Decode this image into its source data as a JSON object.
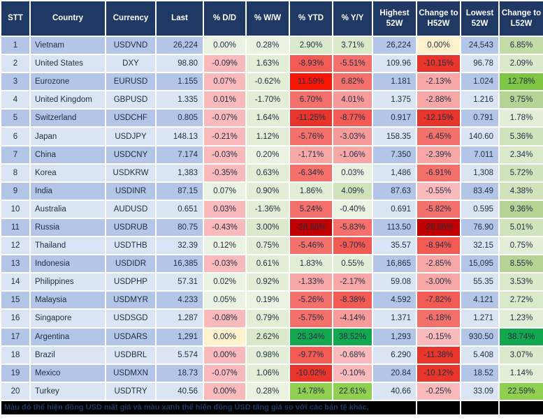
{
  "chart_data": {
    "type": "table",
    "columns": [
      {
        "key": "stt",
        "label": "STT"
      },
      {
        "key": "country",
        "label": "Country"
      },
      {
        "key": "currency",
        "label": "Currency"
      },
      {
        "key": "last",
        "label": "Last"
      },
      {
        "key": "dd",
        "label": "% D/D"
      },
      {
        "key": "ww",
        "label": "% W/W"
      },
      {
        "key": "ytd",
        "label": "% YTD"
      },
      {
        "key": "yy",
        "label": "% Y/Y"
      },
      {
        "key": "h52",
        "label": "Highest 52W"
      },
      {
        "key": "chg_h",
        "label": "Change to H52W"
      },
      {
        "key": "l52",
        "label": "Lowest 52W"
      },
      {
        "key": "chg_l",
        "label": "Change to L52W"
      }
    ],
    "rows": [
      {
        "stt": "1",
        "country": "Vietnam",
        "currency": "USDVND",
        "last": "26,224",
        "dd": [
          "0.00%",
          "g0"
        ],
        "ww": [
          "0.28%",
          "g0"
        ],
        "ytd": [
          "2.90%",
          "g2"
        ],
        "yy": [
          "3.71%",
          "g2"
        ],
        "h52": "26,224",
        "chg_h": [
          "0.00%",
          "cream"
        ],
        "l52": "24,543",
        "chg_l": [
          "6.85%",
          "g4"
        ]
      },
      {
        "stt": "2",
        "country": "United States",
        "currency": "DXY",
        "last": "98.80",
        "dd": [
          "-0.09%",
          "r1"
        ],
        "ww": [
          "1.63%",
          "g1"
        ],
        "ytd": [
          "-8.93%",
          "r5"
        ],
        "yy": [
          "-5.51%",
          "r4"
        ],
        "h52": "109.96",
        "chg_h": [
          "-10.15%",
          "r6"
        ],
        "l52": "96.78",
        "chg_l": [
          "2.09%",
          "g2"
        ]
      },
      {
        "stt": "3",
        "country": "Eurozone",
        "currency": "EURUSD",
        "last": "1.155",
        "dd": [
          "0.07%",
          "r1"
        ],
        "ww": [
          "-0.62%",
          "g1"
        ],
        "ytd": [
          "11.59%",
          "rx"
        ],
        "yy": [
          "6.82%",
          "r4"
        ],
        "h52": "1.181",
        "chg_h": [
          "-2.13%",
          "r2"
        ],
        "l52": "1.024",
        "chg_l": [
          "12.78%",
          "gx"
        ]
      },
      {
        "stt": "4",
        "country": "United Kingdom",
        "currency": "GBPUSD",
        "last": "1.335",
        "dd": [
          "0.01%",
          "r1"
        ],
        "ww": [
          "-1.70%",
          "g1"
        ],
        "ytd": [
          "6.70%",
          "r4"
        ],
        "yy": [
          "4.01%",
          "r3"
        ],
        "h52": "1.375",
        "chg_h": [
          "-2.88%",
          "r2"
        ],
        "l52": "1.216",
        "chg_l": [
          "9.75%",
          "g5"
        ]
      },
      {
        "stt": "5",
        "country": "Switzerland",
        "currency": "USDCHF",
        "last": "0.805",
        "dd": [
          "-0.07%",
          "r1"
        ],
        "ww": [
          "1.64%",
          "g1"
        ],
        "ytd": [
          "-11.25%",
          "r6"
        ],
        "yy": [
          "-8.77%",
          "r5"
        ],
        "h52": "0.917",
        "chg_h": [
          "-12.15%",
          "r6"
        ],
        "l52": "0.791",
        "chg_l": [
          "1.78%",
          "g1"
        ]
      },
      {
        "stt": "6",
        "country": "Japan",
        "currency": "USDJPY",
        "last": "148.13",
        "dd": [
          "-0.21%",
          "r1"
        ],
        "ww": [
          "1.12%",
          "g1"
        ],
        "ytd": [
          "-5.76%",
          "r4"
        ],
        "yy": [
          "-3.03%",
          "r3"
        ],
        "h52": "158.35",
        "chg_h": [
          "-6.45%",
          "r4"
        ],
        "l52": "140.60",
        "chg_l": [
          "5.36%",
          "g3"
        ]
      },
      {
        "stt": "7",
        "country": "China",
        "currency": "USDCNY",
        "last": "7.174",
        "dd": [
          "-0.03%",
          "r1"
        ],
        "ww": [
          "0.20%",
          "g0"
        ],
        "ytd": [
          "-1.71%",
          "r2"
        ],
        "yy": [
          "-1.06%",
          "r2"
        ],
        "h52": "7.350",
        "chg_h": [
          "-2.39%",
          "r2"
        ],
        "l52": "7.011",
        "chg_l": [
          "2.34%",
          "g2"
        ]
      },
      {
        "stt": "8",
        "country": "Korea",
        "currency": "USDKRW",
        "last": "1,383",
        "dd": [
          "-0.35%",
          "r1"
        ],
        "ww": [
          "0.63%",
          "g1"
        ],
        "ytd": [
          "-6.34%",
          "r4"
        ],
        "yy": [
          "0.03%",
          "g0"
        ],
        "h52": "1,486",
        "chg_h": [
          "-6.91%",
          "r4"
        ],
        "l52": "1,308",
        "chg_l": [
          "5.72%",
          "g3"
        ]
      },
      {
        "stt": "9",
        "country": "India",
        "currency": "USDINR",
        "last": "87.15",
        "dd": [
          "0.07%",
          "g0"
        ],
        "ww": [
          "0.90%",
          "g1"
        ],
        "ytd": [
          "1.86%",
          "g1"
        ],
        "yy": [
          "4.09%",
          "g3"
        ],
        "h52": "87.63",
        "chg_h": [
          "-0.55%",
          "r1"
        ],
        "l52": "83.49",
        "chg_l": [
          "4.38%",
          "g3"
        ]
      },
      {
        "stt": "10",
        "country": "Australia",
        "currency": "AUDUSD",
        "last": "0.651",
        "dd": [
          "0.03%",
          "r1"
        ],
        "ww": [
          "-1.36%",
          "g1"
        ],
        "ytd": [
          "5.24%",
          "r4"
        ],
        "yy": [
          "-0.40%",
          "g0"
        ],
        "h52": "0.691",
        "chg_h": [
          "-5.82%",
          "r4"
        ],
        "l52": "0.595",
        "chg_l": [
          "9.36%",
          "g5"
        ]
      },
      {
        "stt": "11",
        "country": "Russia",
        "currency": "USDRUB",
        "last": "80.75",
        "dd": [
          "-0.43%",
          "r1"
        ],
        "ww": [
          "3.00%",
          "g2"
        ],
        "ytd": [
          "-28.86%",
          "rd"
        ],
        "yy": [
          "-5.83%",
          "r4"
        ],
        "h52": "113.50",
        "chg_h": [
          "-28.86%",
          "rd"
        ],
        "l52": "76.90",
        "chg_l": [
          "5.01%",
          "g3"
        ]
      },
      {
        "stt": "12",
        "country": "Thailand",
        "currency": "USDTHB",
        "last": "32.39",
        "dd": [
          "0.12%",
          "g0"
        ],
        "ww": [
          "0.75%",
          "g1"
        ],
        "ytd": [
          "-5.46%",
          "r4"
        ],
        "yy": [
          "-9.70%",
          "r5"
        ],
        "h52": "35.57",
        "chg_h": [
          "-8.94%",
          "r5"
        ],
        "l52": "32.15",
        "chg_l": [
          "0.75%",
          "g1"
        ]
      },
      {
        "stt": "13",
        "country": "Indonesia",
        "currency": "USDIDR",
        "last": "16,385",
        "dd": [
          "-0.03%",
          "r1"
        ],
        "ww": [
          "0.61%",
          "g1"
        ],
        "ytd": [
          "1.83%",
          "g1"
        ],
        "yy": [
          "0.55%",
          "g1"
        ],
        "h52": "16,865",
        "chg_h": [
          "-2.85%",
          "r2"
        ],
        "l52": "15,095",
        "chg_l": [
          "8.55%",
          "g5"
        ]
      },
      {
        "stt": "14",
        "country": "Philippines",
        "currency": "USDPHP",
        "last": "57.31",
        "dd": [
          "0.02%",
          "g0"
        ],
        "ww": [
          "0.92%",
          "g1"
        ],
        "ytd": [
          "-1.33%",
          "r2"
        ],
        "yy": [
          "-2.17%",
          "r2"
        ],
        "h52": "59.08",
        "chg_h": [
          "-3.00%",
          "r2"
        ],
        "l52": "55.35",
        "chg_l": [
          "3.53%",
          "g2"
        ]
      },
      {
        "stt": "15",
        "country": "Malaysia",
        "currency": "USDMYR",
        "last": "4.233",
        "dd": [
          "0.05%",
          "g0"
        ],
        "ww": [
          "0.19%",
          "g0"
        ],
        "ytd": [
          "-5.26%",
          "r4"
        ],
        "yy": [
          "-8.38%",
          "r5"
        ],
        "h52": "4.592",
        "chg_h": [
          "-7.82%",
          "r5"
        ],
        "l52": "4.121",
        "chg_l": [
          "2.72%",
          "g2"
        ]
      },
      {
        "stt": "16",
        "country": "Singapore",
        "currency": "USDSGD",
        "last": "1.287",
        "dd": [
          "-0.08%",
          "r1"
        ],
        "ww": [
          "0.79%",
          "g1"
        ],
        "ytd": [
          "-5.75%",
          "r4"
        ],
        "yy": [
          "-4.14%",
          "r3"
        ],
        "h52": "1.371",
        "chg_h": [
          "-6.18%",
          "r4"
        ],
        "l52": "1.271",
        "chg_l": [
          "1.23%",
          "g1"
        ]
      },
      {
        "stt": "17",
        "country": "Argentina",
        "currency": "USDARS",
        "last": "1,291",
        "dd": [
          "0.00%",
          "cream"
        ],
        "ww": [
          "2.62%",
          "g2"
        ],
        "ytd": [
          "25.34%",
          "gs"
        ],
        "yy": [
          "38.52%",
          "gs"
        ],
        "h52": "1,293",
        "chg_h": [
          "-0.15%",
          "r1"
        ],
        "l52": "930.50",
        "chg_l": [
          "38.74%",
          "gs"
        ]
      },
      {
        "stt": "18",
        "country": "Brazil",
        "currency": "USDBRL",
        "last": "5.574",
        "dd": [
          "0.00%",
          "r1"
        ],
        "ww": [
          "0.98%",
          "g1"
        ],
        "ytd": [
          "-9.77%",
          "r5"
        ],
        "yy": [
          "-0.68%",
          "r1"
        ],
        "h52": "6.290",
        "chg_h": [
          "-11.38%",
          "r6"
        ],
        "l52": "5.408",
        "chg_l": [
          "3.07%",
          "g2"
        ]
      },
      {
        "stt": "19",
        "country": "Mexico",
        "currency": "USDMXN",
        "last": "18.73",
        "dd": [
          "-0.07%",
          "r1"
        ],
        "ww": [
          "1.06%",
          "g1"
        ],
        "ytd": [
          "-10.02%",
          "r6"
        ],
        "yy": [
          "-0.10%",
          "r1"
        ],
        "h52": "20.84",
        "chg_h": [
          "-10.12%",
          "r6"
        ],
        "l52": "18.52",
        "chg_l": [
          "1.14%",
          "g1"
        ]
      },
      {
        "stt": "20",
        "country": "Turkey",
        "currency": "USDTRY",
        "last": "40.56",
        "dd": [
          "0.00%",
          "r1"
        ],
        "ww": [
          "0.28%",
          "g0"
        ],
        "ytd": [
          "14.78%",
          "gv"
        ],
        "yy": [
          "22.61%",
          "gv"
        ],
        "h52": "40.66",
        "chg_h": [
          "-0.25%",
          "r1"
        ],
        "l52": "33.09",
        "chg_l": [
          "22.59%",
          "gv"
        ]
      }
    ]
  },
  "footer": {
    "note": "Màu đỏ thể hiện đồng USD mất giá và màu xanh thể hiện đồng USD tăng giá so với các bản tệ khác."
  },
  "colors": {
    "header_bg": "#1F3864",
    "row_odd": "#B4C6E7",
    "row_even": "#DBE4F3",
    "grid": "#FFFFFF",
    "text": "#222F44",
    "footer_bg": "#000000",
    "footer_text": "#1F3864",
    "cream": "#FFF2CC",
    "g0": "#EAF2E2",
    "g1": "#E3EED7",
    "g2": "#DBE9CB",
    "g3": "#D0E3BC",
    "g4": "#C3DBA7",
    "g5": "#B4D394",
    "gx": "#7FC544",
    "gv": "#90D051",
    "gs": "#13A750",
    "r1": "#FAB9BA",
    "r2": "#F8A7A7",
    "r3": "#F79B9A",
    "r4": "#F4706B",
    "r5": "#F25A54",
    "r6": "#E8352B",
    "rx": "#FB1505",
    "rd": "#C00000"
  }
}
